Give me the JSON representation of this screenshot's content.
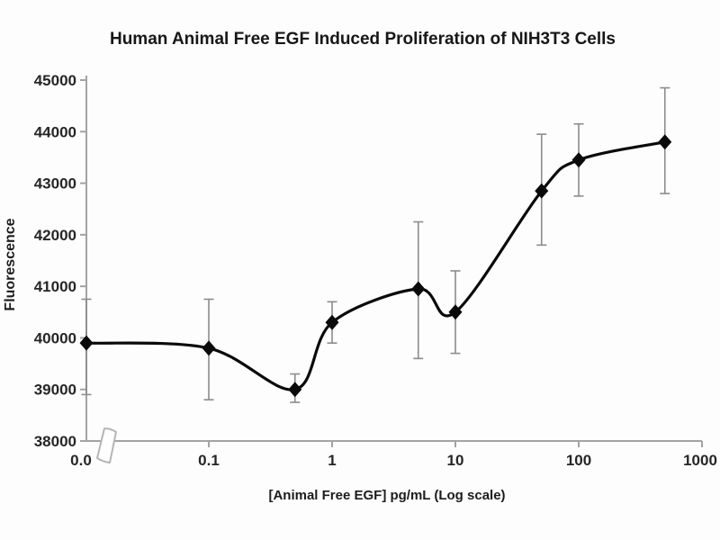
{
  "chart_data": {
    "type": "line",
    "title": "Human Animal Free EGF Induced Proliferation of NIH3T3 Cells",
    "xlabel": "[Animal Free EGF] pg/mL (Log scale)",
    "ylabel": "Fluorescence",
    "x_scale": "log",
    "x_axis_break_after_zero": true,
    "x_ticks": [
      {
        "label": "0.0",
        "value": 0
      },
      {
        "label": "0.1",
        "value": 0.1
      },
      {
        "label": "1",
        "value": 1
      },
      {
        "label": "10",
        "value": 10
      },
      {
        "label": "100",
        "value": 100
      },
      {
        "label": "1000",
        "value": 1000
      }
    ],
    "ylim": [
      38000,
      45000
    ],
    "y_ticks": [
      38000,
      39000,
      40000,
      41000,
      42000,
      43000,
      44000,
      45000
    ],
    "grid": false,
    "legend": "none",
    "smooth": true,
    "series": [
      {
        "marker": "diamond",
        "line_color": "#0a0a0a",
        "marker_color": "#0a0a0a",
        "points": [
          {
            "x": 0,
            "y": 39900,
            "err_low": 38900,
            "err_high": 40750
          },
          {
            "x": 0.1,
            "y": 39800,
            "err_low": 38800,
            "err_high": 40750
          },
          {
            "x": 0.5,
            "y": 39000,
            "err_low": 38750,
            "err_high": 39300
          },
          {
            "x": 1,
            "y": 40300,
            "err_low": 39900,
            "err_high": 40700
          },
          {
            "x": 5,
            "y": 40950,
            "err_low": 39600,
            "err_high": 42250
          },
          {
            "x": 10,
            "y": 40500,
            "err_low": 39700,
            "err_high": 41300
          },
          {
            "x": 50,
            "y": 42850,
            "err_low": 41800,
            "err_high": 43950
          },
          {
            "x": 100,
            "y": 43450,
            "err_low": 42750,
            "err_high": 44150
          },
          {
            "x": 500,
            "y": 43800,
            "err_low": 42800,
            "err_high": 44850
          }
        ]
      }
    ],
    "colors": {
      "error_bar": "#8c8c8c",
      "axis": "#a3a3a3",
      "tick_text": "#262626",
      "title_text": "#171717"
    }
  }
}
